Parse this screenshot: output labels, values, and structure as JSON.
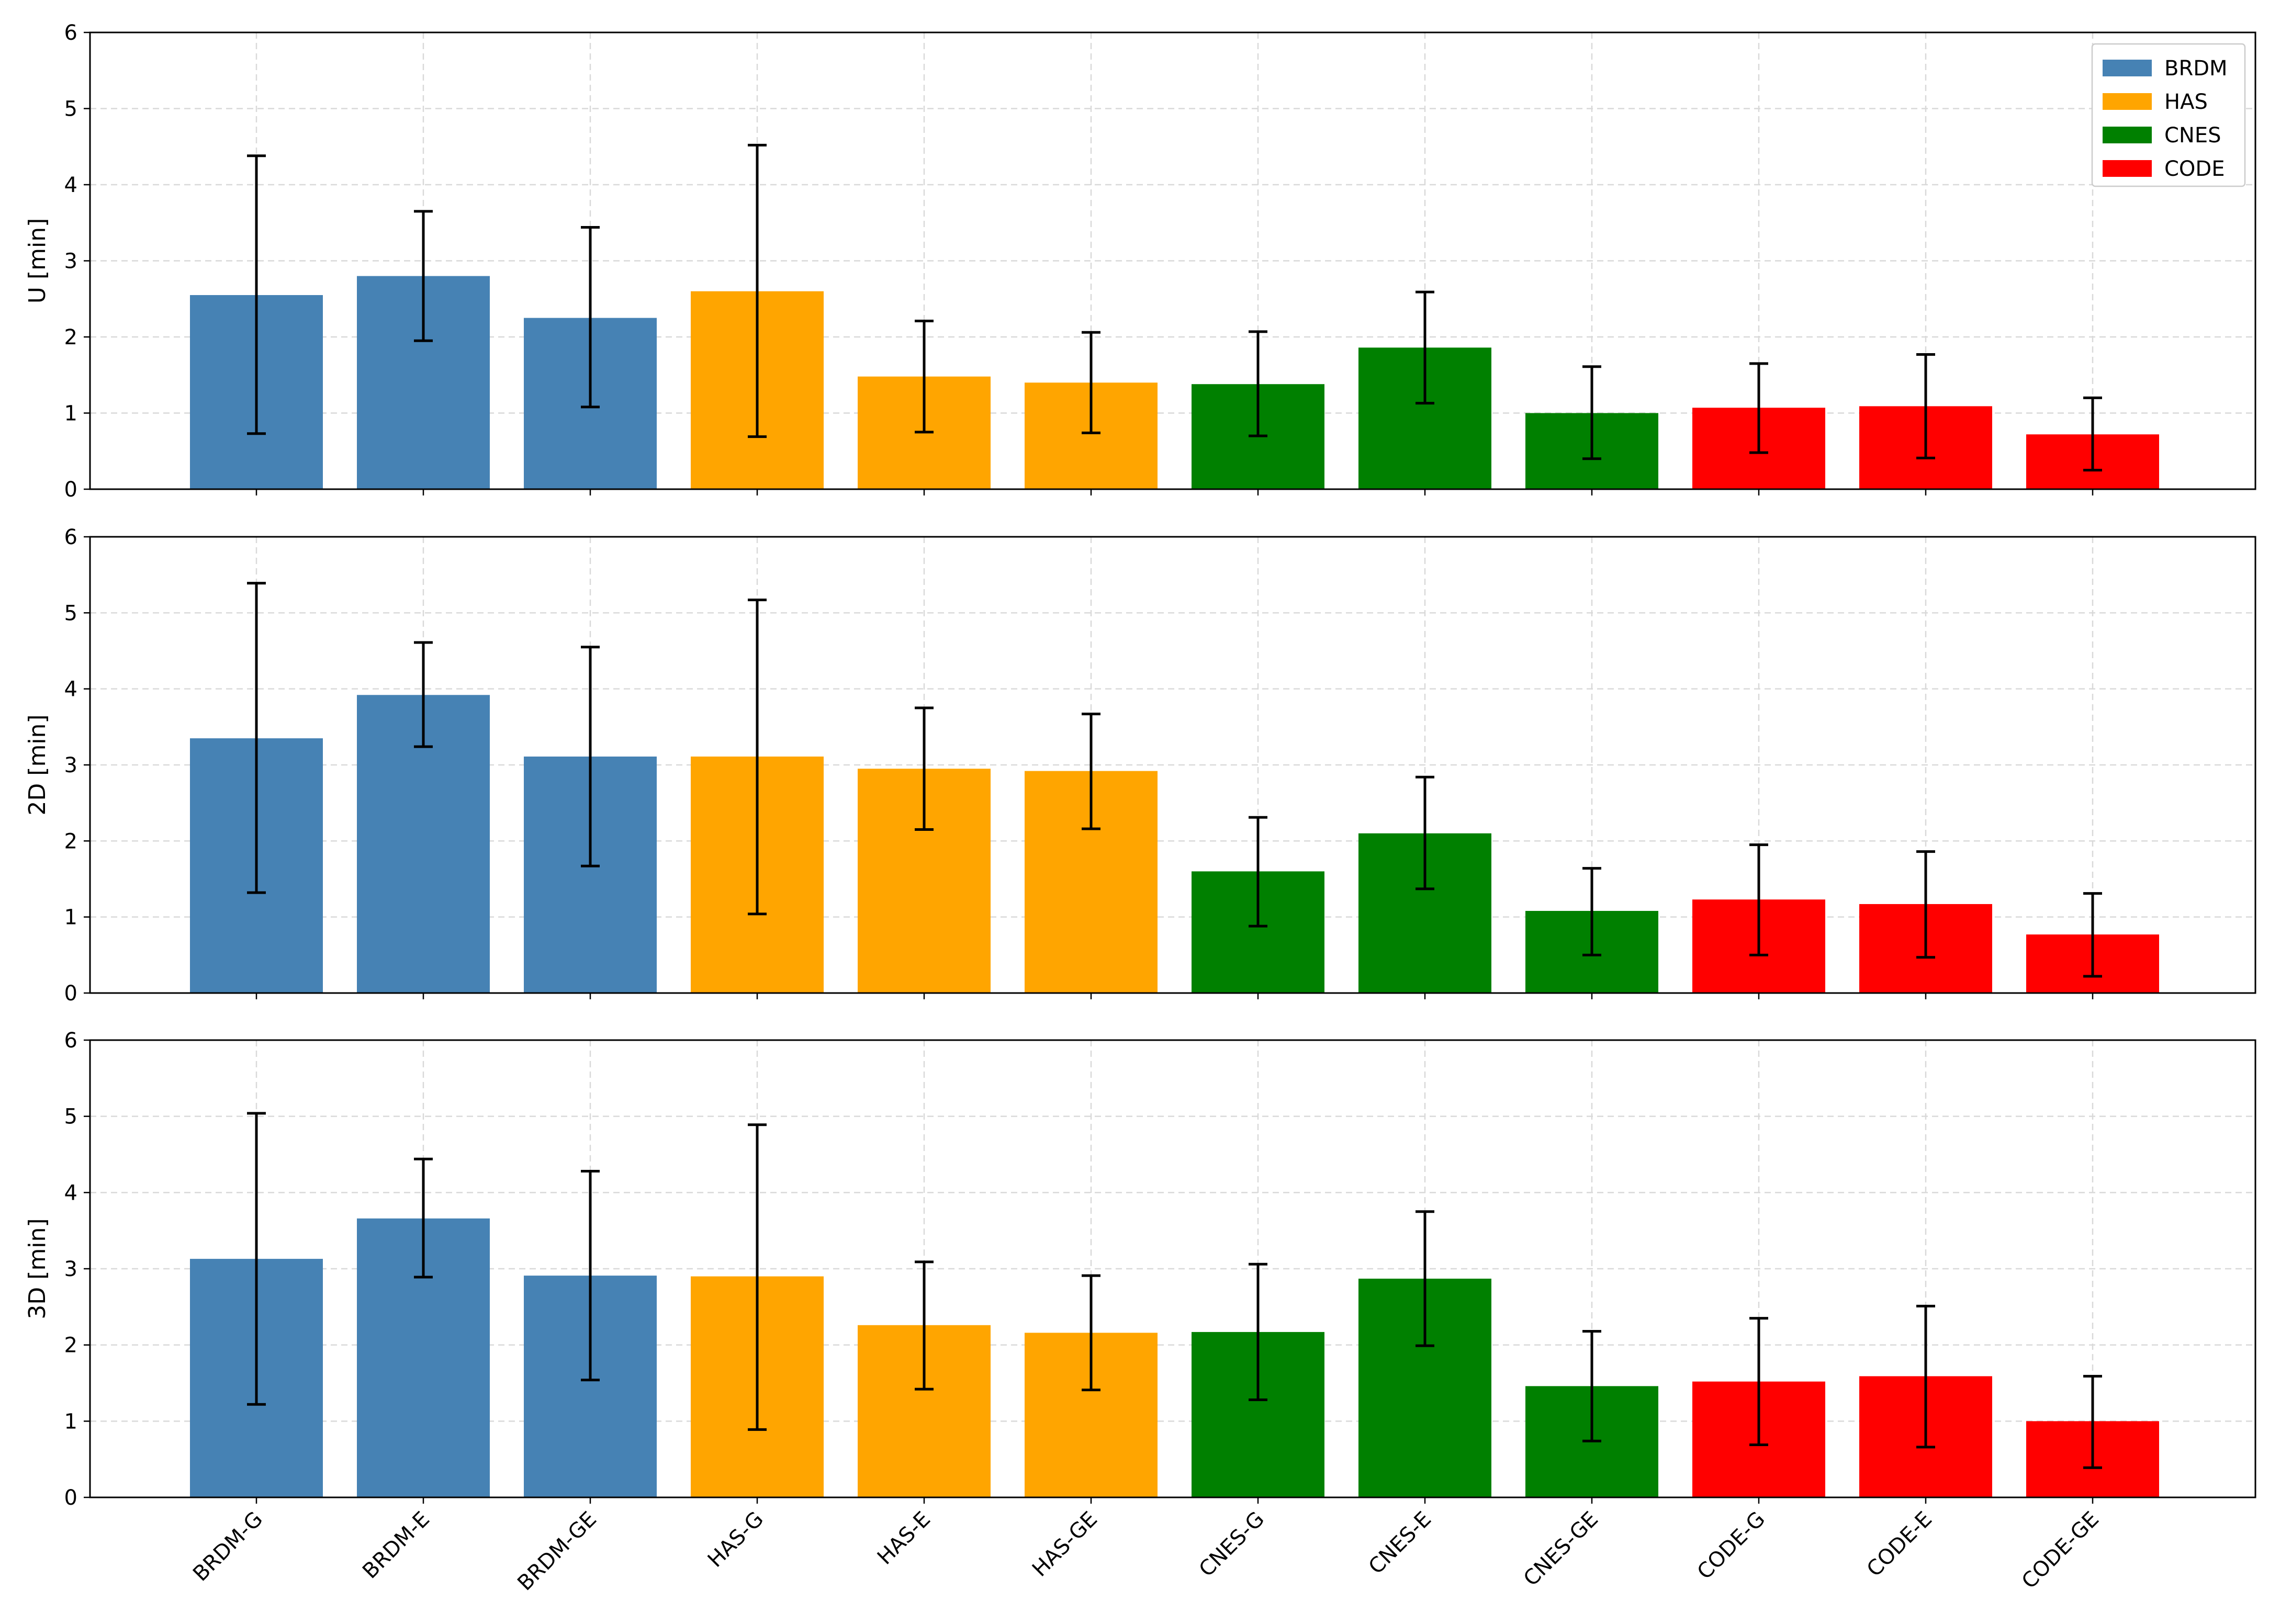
{
  "chart_data": {
    "type": "bar",
    "categories": [
      "BRDM-G",
      "BRDM-E",
      "BRDM-GE",
      "HAS-G",
      "HAS-E",
      "HAS-GE",
      "CNES-G",
      "CNES-E",
      "CNES-GE",
      "CODE-G",
      "CODE-E",
      "CODE-GE"
    ],
    "category_groups": [
      "BRDM",
      "BRDM",
      "BRDM",
      "HAS",
      "HAS",
      "HAS",
      "CNES",
      "CNES",
      "CNES",
      "CODE",
      "CODE",
      "CODE"
    ],
    "legend": [
      {
        "name": "BRDM",
        "color": "#4682b4"
      },
      {
        "name": "HAS",
        "color": "#ffa500"
      },
      {
        "name": "CNES",
        "color": "#008000"
      },
      {
        "name": "CODE",
        "color": "#ff0000"
      }
    ],
    "legend_position": "top-right",
    "grid": true,
    "ylim": [
      0,
      6
    ],
    "yticks": [
      "0",
      "1",
      "2",
      "3",
      "4",
      "5",
      "6"
    ],
    "panels": [
      {
        "ylabel": "U [min]",
        "values": [
          2.55,
          2.8,
          2.25,
          2.6,
          1.48,
          1.4,
          1.38,
          1.86,
          1.0,
          1.07,
          1.09,
          0.72
        ],
        "err_low": [
          0.73,
          1.95,
          1.08,
          0.69,
          0.75,
          0.74,
          0.7,
          1.13,
          0.4,
          0.48,
          0.41,
          0.25
        ],
        "err_high": [
          4.38,
          3.65,
          3.44,
          4.52,
          2.21,
          2.06,
          2.07,
          2.59,
          1.61,
          1.65,
          1.77,
          1.2
        ]
      },
      {
        "ylabel": "2D [min]",
        "values": [
          3.35,
          3.92,
          3.11,
          3.11,
          2.95,
          2.92,
          1.6,
          2.1,
          1.08,
          1.23,
          1.17,
          0.77
        ],
        "err_low": [
          1.32,
          3.24,
          1.67,
          1.04,
          2.15,
          2.16,
          0.88,
          1.37,
          0.5,
          0.5,
          0.47,
          0.22
        ],
        "err_high": [
          5.39,
          4.61,
          4.55,
          5.17,
          3.75,
          3.67,
          2.31,
          2.84,
          1.64,
          1.95,
          1.86,
          1.31
        ]
      },
      {
        "ylabel": "3D [min]",
        "values": [
          3.13,
          3.66,
          2.91,
          2.9,
          2.26,
          2.16,
          2.17,
          2.87,
          1.46,
          1.52,
          1.59,
          1.0
        ],
        "err_low": [
          1.22,
          2.89,
          1.54,
          0.89,
          1.42,
          1.41,
          1.28,
          1.99,
          0.74,
          0.69,
          0.66,
          0.39
        ],
        "err_high": [
          5.04,
          4.44,
          4.28,
          4.89,
          3.09,
          2.91,
          3.06,
          3.75,
          2.18,
          2.35,
          2.51,
          1.59
        ]
      }
    ]
  }
}
